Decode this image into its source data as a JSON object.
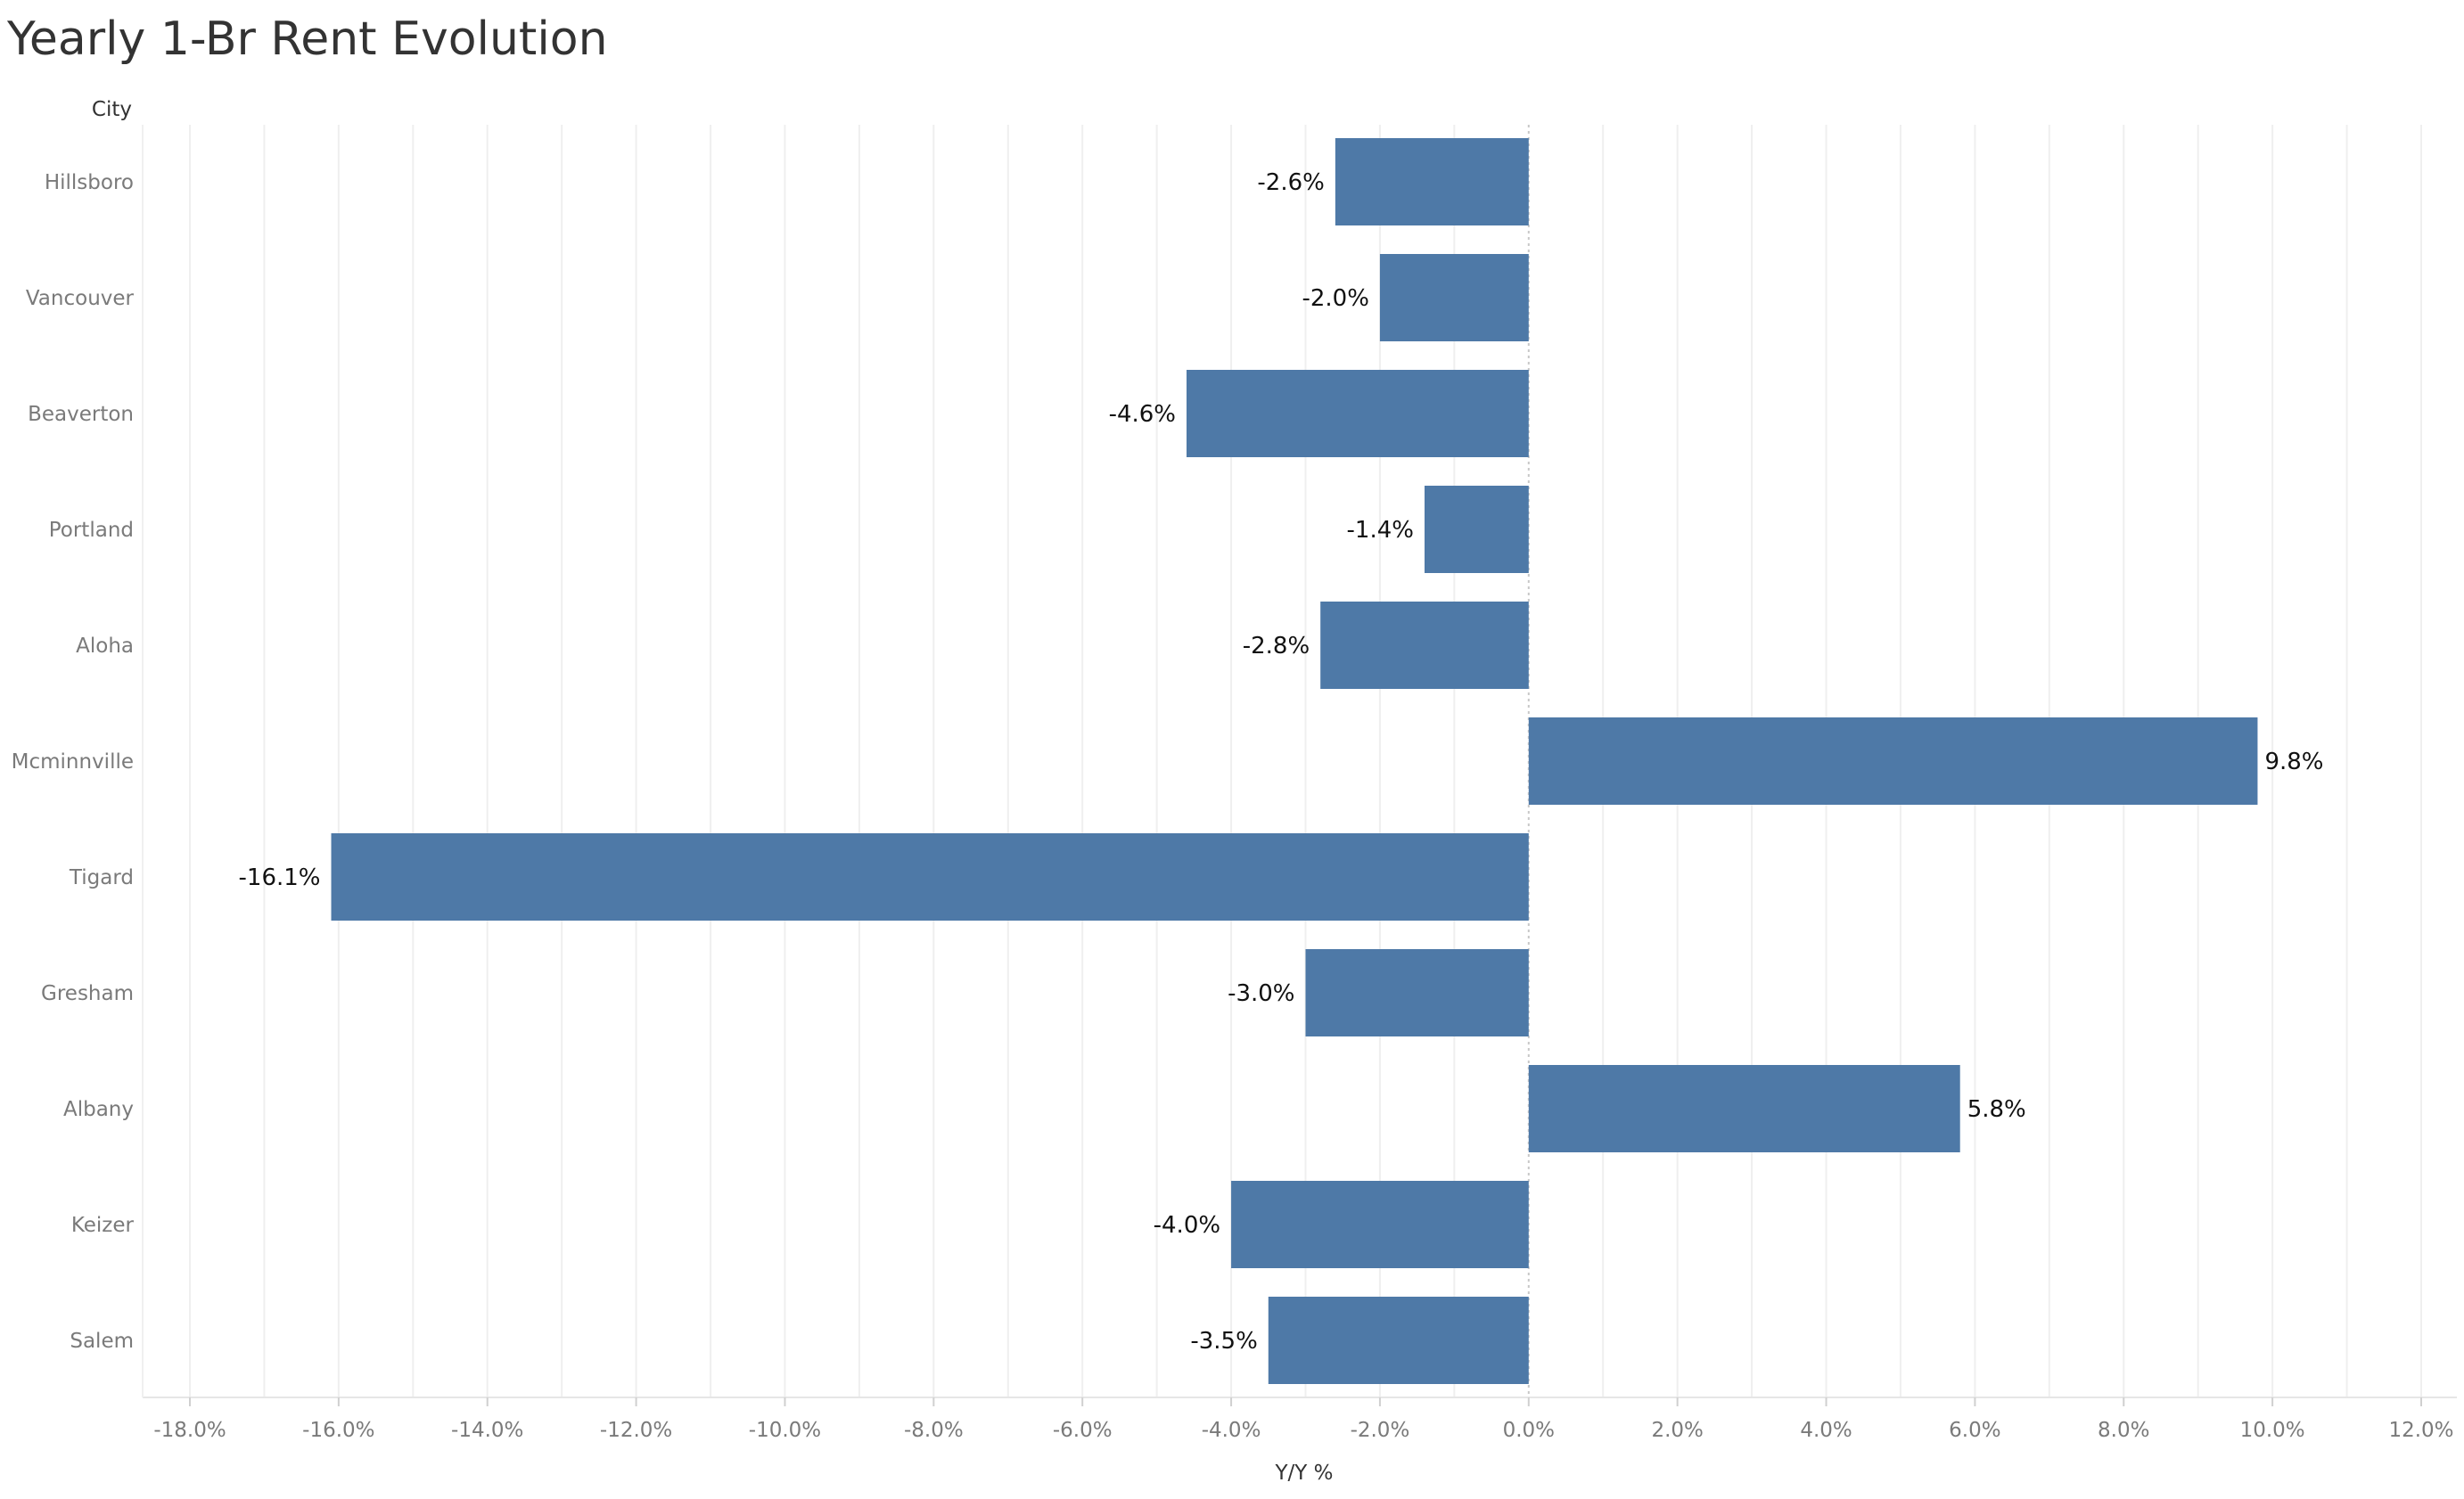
{
  "chart_data": {
    "type": "bar",
    "orientation": "horizontal",
    "title": "Yearly 1-Br Rent Evolution",
    "row_header": "City",
    "xlabel": "Y/Y %",
    "categories": [
      "Hillsboro",
      "Vancouver",
      "Beaverton",
      "Portland",
      "Aloha",
      "Mcminnville",
      "Tigard",
      "Gresham",
      "Albany",
      "Keizer",
      "Salem"
    ],
    "values": [
      -2.6,
      -2.0,
      -4.6,
      -1.4,
      -2.8,
      9.8,
      -16.1,
      -3.0,
      5.8,
      -4.0,
      -3.5
    ],
    "data_labels": [
      "-2.6%",
      "-2.0%",
      "-4.6%",
      "-1.4%",
      "-2.8%",
      "9.8%",
      "-16.1%",
      "-3.0%",
      "5.8%",
      "-4.0%",
      "-3.5%"
    ],
    "xlim": [
      -18,
      12
    ],
    "xticks": [
      -18,
      -16,
      -14,
      -12,
      -10,
      -8,
      -6,
      -4,
      -2,
      0,
      2,
      4,
      6,
      8,
      10,
      12
    ],
    "xtick_labels": [
      "-18.0%",
      "-16.0%",
      "-14.0%",
      "-12.0%",
      "-10.0%",
      "-8.0%",
      "-6.0%",
      "-4.0%",
      "-2.0%",
      "0.0%",
      "2.0%",
      "4.0%",
      "6.0%",
      "8.0%",
      "10.0%",
      "12.0%"
    ],
    "grid": true,
    "legend": "none",
    "bar_color": "#4e79a7"
  }
}
